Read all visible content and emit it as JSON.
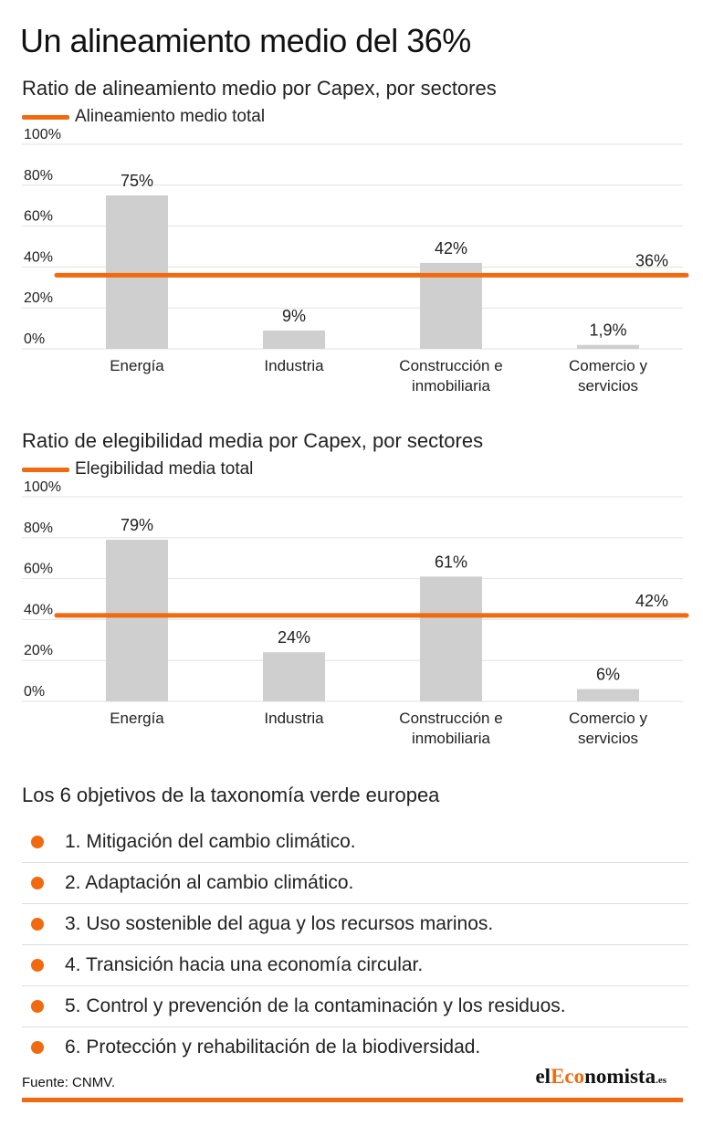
{
  "title": "Un alineamiento medio del 36%",
  "accent_color": "#f26a0f",
  "bar_color": "#cfcfcf",
  "chart_data": [
    {
      "type": "bar",
      "title": "Ratio de alineamiento medio por Capex, por sectores",
      "legend_label": "Alineamiento medio total",
      "categories": [
        [
          "Energía"
        ],
        [
          "Industria"
        ],
        [
          "Construcción e",
          "inmobiliaria"
        ],
        [
          "Comercio y",
          "servicios"
        ]
      ],
      "values": [
        75,
        9,
        42,
        1.9
      ],
      "value_labels": [
        "75%",
        "9%",
        "42%",
        "1,9%"
      ],
      "reference_value": 36,
      "reference_label": "36%",
      "y_ticks": [
        "0%",
        "20%",
        "40%",
        "60%",
        "80%",
        "100%"
      ],
      "ylim": [
        0,
        100
      ],
      "grid": true
    },
    {
      "type": "bar",
      "title": "Ratio de elegibilidad media por Capex, por sectores",
      "legend_label": "Elegibilidad media total",
      "categories": [
        [
          "Energía"
        ],
        [
          "Industria"
        ],
        [
          "Construcción e",
          "inmobiliaria"
        ],
        [
          "Comercio y",
          "servicios"
        ]
      ],
      "values": [
        79,
        24,
        61,
        6
      ],
      "value_labels": [
        "79%",
        "24%",
        "61%",
        "6%"
      ],
      "reference_value": 42,
      "reference_label": "42%",
      "y_ticks": [
        "0%",
        "20%",
        "40%",
        "60%",
        "80%",
        "100%"
      ],
      "ylim": [
        0,
        100
      ],
      "grid": true
    }
  ],
  "objectives": {
    "heading": "Los 6 objetivos de la taxonomía verde europea",
    "items": [
      "1. Mitigación del cambio climático.",
      "2. Adaptación al cambio climático.",
      "3. Uso sostenible del agua y los recursos marinos.",
      "4. Transición hacia una economía circular.",
      "5. Control y prevención de la contaminación y los residuos.",
      "6. Protección y rehabilitación de la biodiversidad."
    ]
  },
  "footer": {
    "source": "Fuente: CNMV.",
    "logo": {
      "prefix": "el",
      "accent": "Eco",
      "rest": "nomista",
      "tld": ".es"
    }
  }
}
